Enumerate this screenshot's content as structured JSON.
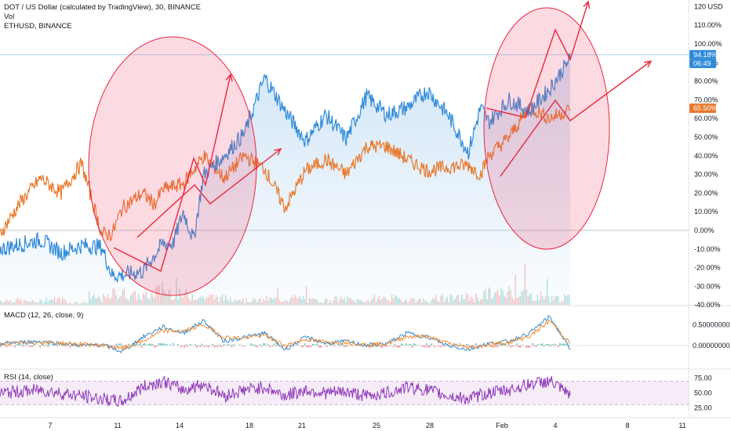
{
  "header": {
    "title": "DOT / US Dollar (calculated by TradingView), 30, BINANCE",
    "vol_label": "Vol",
    "compare_label": "ETHUSD, BINANCE"
  },
  "indicators": {
    "macd_label": "MACD (12, 26, close, 9)",
    "rsi_label": "RSI (14, close)"
  },
  "price_tags": {
    "dot_value": "94.18%",
    "dot_countdown": "06:49",
    "eth_value": "65.50%"
  },
  "colors": {
    "dot": "#2f8ad8",
    "eth": "#e8782a",
    "annotation": "#e8283c",
    "macd": "#2f8ad8",
    "signal": "#f0892d",
    "rsi": "#8e3ab8"
  },
  "chart_data": [
    {
      "type": "line",
      "title": "DOT / US Dollar (calculated by TradingView), 30, BINANCE",
      "y_unit": "%",
      "y_axis_labels": [
        "120 USD",
        "110.00%",
        "100.00%",
        "90.00%",
        "80.00%",
        "70.00%",
        "60.00%",
        "50.00%",
        "40.00%",
        "30.00%",
        "20.00%",
        "10.00%",
        "0.00%",
        "-10.00%",
        "-20.00%",
        "-30.00%",
        "-40.00%"
      ],
      "ylim": [
        -40,
        120
      ],
      "x_labels": [
        "7",
        "11",
        "14",
        "18",
        "21",
        "25",
        "28",
        "Feb",
        "4",
        "8",
        "11"
      ],
      "series": [
        {
          "name": "DOT / US Dollar",
          "color": "#2f8ad8",
          "x": [
            0,
            2,
            3,
            4,
            5,
            5.5,
            6,
            7,
            8,
            8.5,
            9,
            9.5,
            10,
            11,
            12,
            13,
            14,
            15,
            16,
            17,
            18,
            19,
            20,
            21,
            22,
            23,
            23.6,
            24,
            25,
            26,
            27,
            28
          ],
          "y": [
            -10,
            -5,
            -12,
            -8,
            -9,
            -24,
            -24,
            -22,
            -7,
            -7,
            10,
            -5,
            30,
            40,
            52,
            82,
            64,
            48,
            62,
            49,
            72,
            62,
            66,
            75,
            62,
            42,
            66,
            58,
            70,
            64,
            76,
            92
          ]
        },
        {
          "name": "ETHUSD, BINANCE",
          "color": "#e8782a",
          "x": [
            0,
            1,
            2,
            3,
            4,
            5,
            5.5,
            6,
            7,
            7.6,
            8,
            9,
            10,
            11,
            12,
            13,
            14,
            15,
            16,
            17,
            18,
            19,
            20,
            21,
            22,
            23,
            23.6,
            24,
            25,
            26,
            27,
            28
          ],
          "y": [
            -2,
            15,
            28,
            20,
            36,
            -2,
            -2,
            12,
            20,
            14,
            22,
            25,
            40,
            28,
            40,
            33,
            12,
            32,
            38,
            30,
            45,
            45,
            38,
            32,
            34,
            35,
            30,
            40,
            50,
            66,
            60,
            65
          ]
        }
      ]
    },
    {
      "type": "bar",
      "title": "Vol",
      "note": "volume histogram, relative heights",
      "values": [
        0.2,
        0.15,
        0.25,
        0.1,
        0.3,
        0.5,
        0.4,
        0.6,
        0.45,
        0.35,
        0.3,
        0.2,
        0.25,
        0.3,
        0.2,
        0.25,
        0.2,
        0.3,
        0.25,
        0.2,
        0.3,
        0.35,
        0.5,
        0.6,
        0.4,
        0.3
      ]
    },
    {
      "type": "line",
      "title": "MACD (12, 26, close, 9)",
      "y_axis_labels": [
        "0.50000000",
        "0.00000000"
      ],
      "ylim": [
        -0.4,
        0.85
      ],
      "series": [
        {
          "name": "MACD",
          "color": "#2f8ad8",
          "x": [
            0,
            2,
            4,
            5,
            6,
            7,
            8,
            9,
            10,
            11,
            12,
            13,
            14,
            15,
            16,
            17,
            18,
            19,
            20,
            21,
            22,
            23,
            24,
            25,
            26,
            27,
            28
          ],
          "y": [
            0.05,
            0.1,
            0.0,
            0.02,
            -0.15,
            0.2,
            0.45,
            0.3,
            0.6,
            0.1,
            0.2,
            0.3,
            -0.1,
            0.2,
            0.05,
            0.1,
            0.0,
            0.05,
            0.3,
            0.2,
            0.0,
            -0.1,
            0.05,
            0.1,
            0.3,
            0.7,
            -0.1
          ]
        },
        {
          "name": "Signal",
          "color": "#f0892d",
          "x": [
            0,
            2,
            4,
            5,
            6,
            7,
            8,
            9,
            10,
            11,
            12,
            13,
            14,
            15,
            16,
            17,
            18,
            19,
            20,
            21,
            22,
            23,
            24,
            25,
            26,
            27,
            28
          ],
          "y": [
            0.04,
            0.08,
            0.03,
            0.01,
            -0.08,
            0.1,
            0.35,
            0.35,
            0.5,
            0.2,
            0.18,
            0.25,
            0.0,
            0.15,
            0.08,
            0.08,
            0.02,
            0.04,
            0.22,
            0.22,
            0.05,
            -0.05,
            0.02,
            0.08,
            0.22,
            0.6,
            0.05
          ]
        }
      ]
    },
    {
      "type": "line",
      "title": "RSI (14, close)",
      "y_axis_labels": [
        "75.00",
        "50.00",
        "25.00"
      ],
      "ylim": [
        15,
        85
      ],
      "series": [
        {
          "name": "RSI",
          "color": "#8e3ab8",
          "x": [
            0,
            2,
            4,
            5,
            6,
            7,
            8,
            9,
            10,
            11,
            12,
            13,
            14,
            15,
            16,
            17,
            18,
            19,
            20,
            21,
            22,
            23,
            24,
            25,
            26,
            27,
            28
          ],
          "y": [
            50,
            55,
            45,
            40,
            35,
            60,
            70,
            55,
            65,
            45,
            55,
            60,
            45,
            55,
            50,
            52,
            45,
            50,
            60,
            55,
            45,
            40,
            50,
            55,
            65,
            70,
            45
          ]
        }
      ]
    }
  ]
}
